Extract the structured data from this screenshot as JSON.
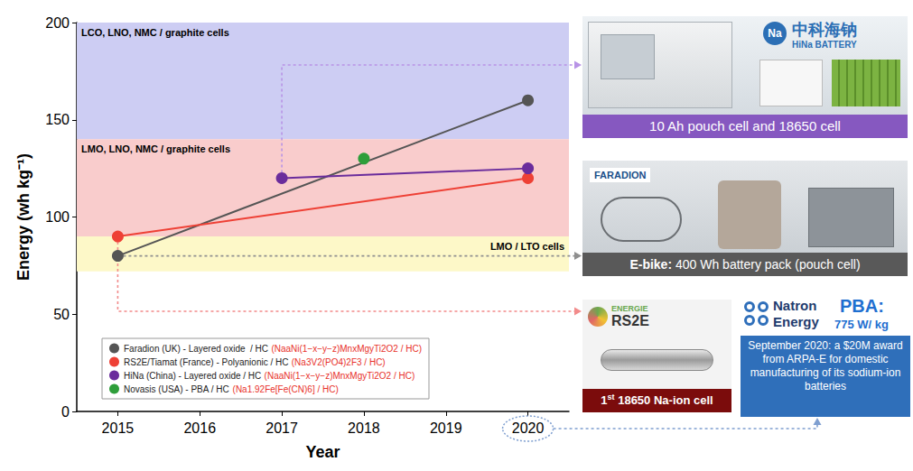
{
  "chart_data": {
    "type": "line",
    "x_label": "Year",
    "y_label": "Energy (wh kg⁻¹)",
    "xlim": [
      2014.5,
      2020.5
    ],
    "xticks": [
      2015,
      2016,
      2017,
      2018,
      2019,
      2020
    ],
    "ylim": [
      0,
      200
    ],
    "yticks": [
      0,
      50,
      100,
      150,
      200
    ],
    "grid": false,
    "legend": "lower left",
    "marker": "circle",
    "line_style": "solid",
    "bands": [
      {
        "from": 140,
        "to": 200,
        "label": "LCO, LNO, NMC / graphite cells",
        "color": "#cdcdf3"
      },
      {
        "from": 90,
        "to": 140,
        "label": "LMO, LNO, NMC / graphite cells",
        "color": "#f9cccc"
      },
      {
        "from": 72,
        "to": 90,
        "label": "LMO / LTO cells",
        "color": "#fdf8c8"
      }
    ],
    "series": [
      {
        "name": "Faradion (UK) - Layered oxide  / HC",
        "formula": "(NaaNi(1−x−y−z)MnxMgyTi2O2 / HC)",
        "color": "#555555",
        "x": [
          2015,
          2020
        ],
        "values": [
          80,
          160
        ]
      },
      {
        "name": "RS2E/Tiamat (France) - Polyanionic / HC",
        "formula": "(Na3V2(PO4)2F3 / HC)",
        "color": "#ee4035",
        "x": [
          2015,
          2020
        ],
        "values": [
          90,
          120
        ]
      },
      {
        "name": "HiNa (China) - Layered oxide / HC",
        "formula": "(NaaNi(1−x−y−z)MnxMgyTi2O2 / HC)",
        "color": "#6a2c9c",
        "x": [
          2017,
          2020
        ],
        "values": [
          120,
          125
        ]
      },
      {
        "name": "Novasis (USA) - PBA / HC",
        "formula": "(Na1.92Fe[Fe(CN)6] / HC)",
        "color": "#2e9e3a",
        "x": [
          2018
        ],
        "values": [
          130
        ]
      }
    ]
  },
  "panels": [
    {
      "logo": [
        "中科海钠",
        "HiNa BATTERY"
      ],
      "logo_badge": "Na",
      "caption": "10 Ah pouch cell and 18650 cell",
      "color": "#8658c0"
    },
    {
      "logo": [
        "FARADION"
      ],
      "caption_lead": "E-bike:",
      "caption": "400 Wh battery pack (pouch cell)",
      "color": "#595959"
    },
    {
      "logo": [
        "ENERGIE",
        "RS2E"
      ],
      "caption_lead": "1",
      "caption_sup": "st",
      "caption": "18650 Na-ion cell",
      "color": "#7b0c0c"
    },
    {
      "logo": [
        "Natron",
        "Energy"
      ],
      "highlight": "PBA:",
      "rating": "775 W/ kg",
      "note": "September 2020: a $20M award from ARPA-E for domestic manufacturing of its sodium-ion batteries",
      "color": "#2f6fba"
    }
  ]
}
